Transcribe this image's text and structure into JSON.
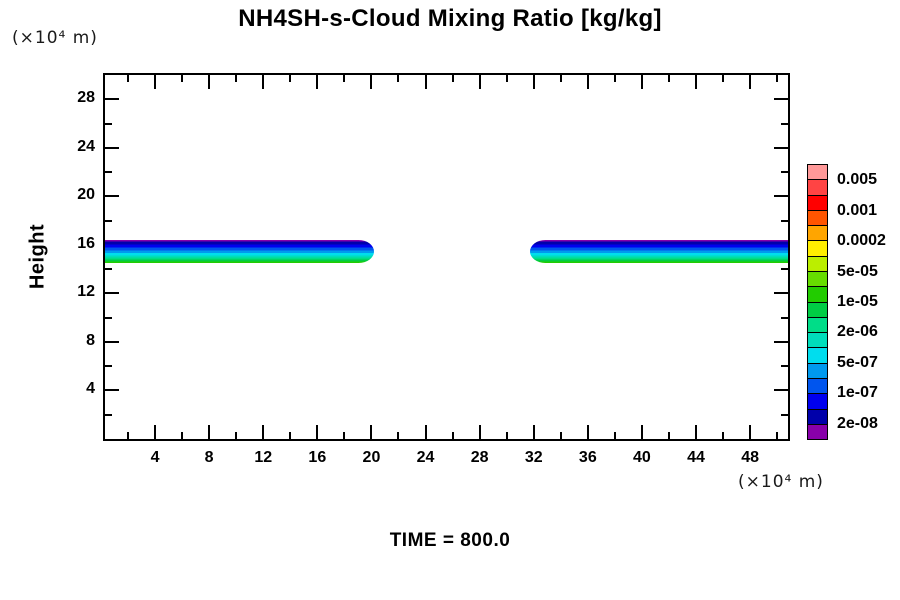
{
  "title": "NH4SH-s-Cloud Mixing Ratio [kg/kg]",
  "time_label": "TIME = 800.0",
  "chart_data": {
    "type": "filled-contour",
    "title": "NH4SH-s-Cloud Mixing Ratio [kg/kg]",
    "time": 800.0,
    "legend_position": "right",
    "grid": false,
    "axes": {
      "ylabel": "Height",
      "y_axis_unit": "(×10⁴ m)",
      "x_axis_unit": "(×10⁴ m)",
      "xlim": [
        0.3,
        50.8
      ],
      "ylim": [
        0,
        30
      ],
      "x_major_ticks": [
        4,
        8,
        12,
        16,
        20,
        24,
        28,
        32,
        36,
        40,
        44,
        48
      ],
      "x_minor_ticks": [
        2,
        6,
        10,
        14,
        18,
        22,
        26,
        30,
        34,
        38,
        42,
        46,
        50
      ],
      "y_major_ticks": [
        4,
        8,
        12,
        16,
        20,
        24,
        28
      ],
      "y_minor_ticks": [
        2,
        6,
        10,
        14,
        18,
        22,
        26
      ]
    },
    "colorbar": {
      "cell_colors_top_to_bottom": [
        "#FF9999",
        "#FF4444",
        "#FF0000",
        "#FF5500",
        "#FFA500",
        "#FFEE00",
        "#BBEE00",
        "#66DD00",
        "#22CC00",
        "#00CC44",
        "#00DD88",
        "#00DDBB",
        "#00DDEE",
        "#0099EE",
        "#0055EE",
        "#0000EE",
        "#0000AA",
        "#8800AA"
      ],
      "levels_bottom_to_top": [
        2e-08,
        5e-08,
        1e-07,
        2e-07,
        5e-07,
        1e-06,
        2e-06,
        5e-06,
        1e-05,
        2e-05,
        5e-05,
        0.0001,
        0.0002,
        0.0005,
        0.001,
        0.002,
        0.005
      ],
      "labels": [
        {
          "text": "0.005",
          "boundary_from_top": 1
        },
        {
          "text": "0.001",
          "boundary_from_top": 3
        },
        {
          "text": "0.0002",
          "boundary_from_top": 5
        },
        {
          "text": "5e-05",
          "boundary_from_top": 7
        },
        {
          "text": "1e-05",
          "boundary_from_top": 9
        },
        {
          "text": "2e-06",
          "boundary_from_top": 11
        },
        {
          "text": "5e-07",
          "boundary_from_top": 13
        },
        {
          "text": "1e-07",
          "boundary_from_top": 15
        },
        {
          "text": "2e-08",
          "boundary_from_top": 17
        }
      ]
    },
    "band_layers_top_to_bottom": [
      {
        "range": "2e-08 to 5e-08",
        "color": "#8800AA",
        "frac": 0.065
      },
      {
        "range": "5e-08 to 1e-07",
        "color": "#0000AA",
        "frac": 0.13
      },
      {
        "range": "1e-07 to 2e-07",
        "color": "#0000EE",
        "frac": 0.13
      },
      {
        "range": "2e-07 to 5e-07",
        "color": "#0055EE",
        "frac": 0.13
      },
      {
        "range": "5e-07 to 1e-06",
        "color": "#0099EE",
        "frac": 0.11
      },
      {
        "range": "1e-06 to 2e-06",
        "color": "#00DDEE",
        "frac": 0.11
      },
      {
        "range": "2e-06 to 5e-06",
        "color": "#00DDBB",
        "frac": 0.085
      },
      {
        "range": "5e-06 to 1e-05",
        "color": "#00DD88",
        "frac": 0.085
      },
      {
        "range": "1e-05 to 2e-05",
        "color": "#00CC44",
        "frac": 0.085
      },
      {
        "range": "2e-05 to 5e-05",
        "color": "#22CC00",
        "frac": 0.07
      }
    ],
    "bands": [
      {
        "name": "left-cloud-band",
        "x_start": 0.3,
        "x_end": 20.2,
        "y_top": 16.4,
        "y_bottom": 14.5,
        "rounded_tip": "right"
      },
      {
        "name": "right-cloud-band",
        "x_start": 31.7,
        "x_end": 50.8,
        "y_top": 16.4,
        "y_bottom": 14.5,
        "rounded_tip": "left"
      }
    ]
  }
}
